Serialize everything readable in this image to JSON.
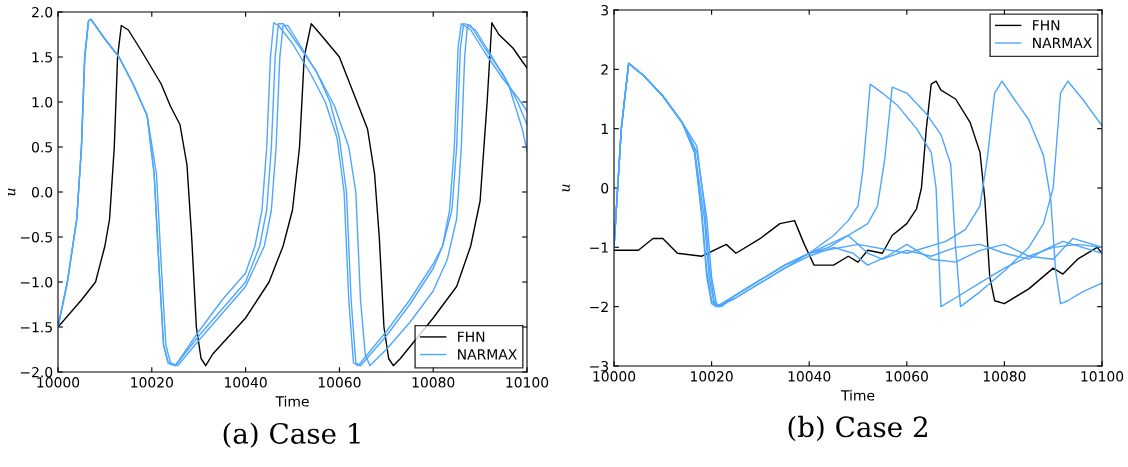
{
  "chart_data": [
    {
      "type": "line",
      "title": "(a) Case 1",
      "xlabel": "Time",
      "ylabel": "u",
      "legend": "bottom right",
      "grid": false,
      "xlim": [
        10000,
        10100
      ],
      "xticks": [
        10000,
        10020,
        10040,
        10060,
        10080,
        10100
      ],
      "ylim": [
        -2.0,
        2.0
      ],
      "yticks": [
        {
          "value": -2.0,
          "label": "−2.0"
        },
        {
          "value": -1.5,
          "label": "−1.5"
        },
        {
          "value": -1.0,
          "label": "−1.0"
        },
        {
          "value": -0.5,
          "label": "−0.5"
        },
        {
          "value": 0.0,
          "label": "0.0"
        },
        {
          "value": 0.5,
          "label": "0.5"
        },
        {
          "value": 1.0,
          "label": "1.0"
        },
        {
          "value": 1.5,
          "label": "1.5"
        },
        {
          "value": 2.0,
          "label": "2.0"
        }
      ],
      "series": [
        {
          "name": "FHN",
          "color": "#000000",
          "x": [
            10000,
            10005,
            10008,
            10010,
            10011,
            10012,
            10012.7,
            10013.5,
            10015,
            10018,
            10022,
            10024,
            10026,
            10027.5,
            10028.5,
            10029.5,
            10030.5,
            10031.5,
            10033,
            10040,
            10045,
            10048,
            10050,
            10051.5,
            10052.5,
            10054,
            10056,
            10060,
            10063,
            10066,
            10067.5,
            10068.5,
            10069.5,
            10070.5,
            10071.5,
            10073,
            10080,
            10085,
            10088,
            10090,
            10091.5,
            10092.5,
            10094,
            10097,
            10099,
            10100
          ],
          "values": [
            -1.5,
            -1.2,
            -1.0,
            -0.6,
            -0.3,
            0.5,
            1.5,
            1.85,
            1.8,
            1.55,
            1.2,
            0.95,
            0.75,
            0.3,
            -0.5,
            -1.5,
            -1.85,
            -1.93,
            -1.8,
            -1.4,
            -1.0,
            -0.6,
            -0.2,
            0.5,
            1.5,
            1.87,
            1.75,
            1.5,
            1.1,
            0.7,
            0.2,
            -0.5,
            -1.5,
            -1.85,
            -1.93,
            -1.85,
            -1.4,
            -1.05,
            -0.6,
            -0.1,
            1.0,
            1.88,
            1.75,
            1.6,
            1.45,
            1.38
          ]
        },
        {
          "name": "NARMAX",
          "color": "#4da6ff",
          "x": [
            10000,
            10002,
            10004,
            10005,
            10005.7,
            10006.5,
            10007,
            10010,
            10013,
            10016,
            10019,
            10020.5,
            10021.5,
            10022.5,
            10023.5,
            10025,
            10030,
            10035,
            10040,
            10043,
            10044.5,
            10045.5,
            10046.3,
            10047,
            10048,
            10051,
            10055,
            10058,
            10060,
            10061.5,
            10062.5,
            10063.5,
            10064.5,
            10070,
            10075,
            10080,
            10082,
            10084,
            10085,
            10085.8,
            10086.5,
            10088,
            10091,
            10095,
            10098,
            10100
          ],
          "values": [
            -1.5,
            -1.0,
            -0.3,
            0.5,
            1.5,
            1.9,
            1.92,
            1.7,
            1.5,
            1.2,
            0.85,
            0.2,
            -0.8,
            -1.7,
            -1.9,
            -1.93,
            -1.6,
            -1.3,
            -1.0,
            -0.6,
            -0.2,
            0.5,
            1.5,
            1.87,
            1.87,
            1.65,
            1.35,
            1.0,
            0.6,
            0.0,
            -1.2,
            -1.9,
            -1.93,
            -1.6,
            -1.25,
            -0.85,
            -0.6,
            -0.2,
            0.5,
            1.6,
            1.87,
            1.85,
            1.6,
            1.3,
            1.0,
            0.75
          ]
        },
        {
          "color": "#4da6ff",
          "x": [
            10000,
            10002,
            10004,
            10005,
            10005.7,
            10006.5,
            10007,
            10010,
            10013,
            10016,
            10019,
            10021,
            10022,
            10023,
            10024,
            10025.5,
            10030,
            10035,
            10040,
            10044,
            10045.5,
            10046.5,
            10047.3,
            10048,
            10049,
            10052,
            10056,
            10059,
            10062,
            10063.5,
            10064.5,
            10065.5,
            10066.5,
            10070,
            10075,
            10080,
            10083,
            10085,
            10086,
            10086.7,
            10087.3,
            10089,
            10092,
            10096,
            10099,
            10100
          ],
          "values": [
            -1.5,
            -1.0,
            -0.3,
            0.5,
            1.5,
            1.9,
            1.92,
            1.7,
            1.5,
            1.2,
            0.85,
            0.2,
            -0.8,
            -1.7,
            -1.9,
            -1.93,
            -1.65,
            -1.35,
            -1.05,
            -0.6,
            -0.2,
            0.5,
            1.5,
            1.85,
            1.85,
            1.6,
            1.25,
            0.95,
            0.5,
            0.0,
            -1.2,
            -1.8,
            -1.93,
            -1.75,
            -1.45,
            -1.1,
            -0.75,
            -0.3,
            0.5,
            1.5,
            1.85,
            1.8,
            1.55,
            1.2,
            0.7,
            0.45
          ]
        },
        {
          "color": "#4da6ff",
          "x": [
            10000,
            10002,
            10004,
            10005,
            10005.7,
            10006.5,
            10007,
            10010,
            10013,
            10016,
            10019,
            10020.5,
            10021.5,
            10022.5,
            10023.5,
            10025,
            10030,
            10035,
            10040,
            10042,
            10043.5,
            10044.5,
            10045.3,
            10046,
            10047,
            10050,
            10054,
            10057,
            10059.5,
            10061,
            10062,
            10063,
            10064,
            10070,
            10075,
            10080,
            10082,
            10083.5,
            10084.5,
            10085.3,
            10086,
            10088,
            10091,
            10095,
            10098,
            10100
          ],
          "values": [
            -1.5,
            -1.0,
            -0.3,
            0.5,
            1.5,
            1.9,
            1.92,
            1.7,
            1.5,
            1.2,
            0.85,
            0.2,
            -0.8,
            -1.7,
            -1.9,
            -1.93,
            -1.55,
            -1.2,
            -0.9,
            -0.6,
            -0.2,
            0.5,
            1.5,
            1.88,
            1.85,
            1.65,
            1.3,
            1.0,
            0.6,
            0.0,
            -1.2,
            -1.9,
            -1.93,
            -1.55,
            -1.2,
            -0.8,
            -0.6,
            -0.2,
            0.5,
            1.6,
            1.87,
            1.8,
            1.55,
            1.25,
            1.05,
            0.9
          ]
        }
      ]
    },
    {
      "type": "line",
      "title": "(b) Case 2",
      "xlabel": "Time",
      "ylabel": "u",
      "legend": "top right",
      "grid": false,
      "xlim": [
        10000,
        10100
      ],
      "xticks": [
        10000,
        10020,
        10040,
        10060,
        10080,
        10100
      ],
      "ylim": [
        -3,
        3
      ],
      "yticks": [
        {
          "value": -3,
          "label": "−3"
        },
        {
          "value": -2,
          "label": "−2"
        },
        {
          "value": -1,
          "label": "−1"
        },
        0,
        1,
        2,
        3
      ],
      "series": [
        {
          "name": "FHN",
          "color": "#000000",
          "x": [
            10000,
            10005,
            10008,
            10010,
            10013,
            10018,
            10023,
            10025,
            10030,
            10034,
            10037,
            10039,
            10041,
            10045,
            10048,
            10050,
            10052,
            10055,
            10057,
            10060,
            10062,
            10063,
            10064,
            10065,
            10066,
            10067,
            10070,
            10073,
            10075,
            10076,
            10077,
            10078,
            10080,
            10085,
            10090,
            10092,
            10095,
            10099,
            10100
          ],
          "values": [
            -1.05,
            -1.05,
            -0.85,
            -0.85,
            -1.1,
            -1.15,
            -0.95,
            -1.1,
            -0.85,
            -0.6,
            -0.55,
            -0.95,
            -1.3,
            -1.3,
            -1.15,
            -1.25,
            -1.05,
            -1.1,
            -0.8,
            -0.6,
            -0.35,
            0.0,
            1.0,
            1.75,
            1.8,
            1.65,
            1.5,
            1.1,
            0.6,
            -0.2,
            -1.5,
            -1.9,
            -1.95,
            -1.7,
            -1.35,
            -1.45,
            -1.2,
            -1.0,
            -1.1
          ]
        },
        {
          "name": "NARMAX",
          "color": "#4da6ff",
          "x": [
            10000,
            10001.5,
            10003,
            10006,
            10010,
            10014,
            10016.5,
            10018,
            10019,
            10020,
            10021,
            10025,
            10030,
            10035,
            10040,
            10045,
            10048,
            10050,
            10051,
            10052.5,
            10055,
            10058,
            10062,
            10065,
            10066,
            10067,
            10070,
            10075,
            10080,
            10085,
            10090,
            10095,
            10100
          ],
          "values": [
            -1.0,
            1.0,
            2.1,
            1.9,
            1.55,
            1.1,
            0.6,
            -0.5,
            -1.5,
            -1.95,
            -2.0,
            -1.8,
            -1.55,
            -1.3,
            -1.1,
            -0.8,
            -0.55,
            -0.3,
            0.3,
            1.75,
            1.6,
            1.4,
            1.0,
            0.6,
            0.0,
            -2.0,
            -1.85,
            -1.6,
            -1.35,
            -1.15,
            -1.0,
            -0.95,
            -1.0
          ]
        },
        {
          "color": "#4da6ff",
          "x": [
            10000,
            10001.5,
            10003,
            10006,
            10010,
            10014,
            10016.5,
            10018.5,
            10019.5,
            10020.5,
            10021.5,
            10025,
            10030,
            10035,
            10040,
            10048,
            10052,
            10054,
            10055.5,
            10057,
            10060,
            10064,
            10067,
            10069,
            10070,
            10071,
            10075,
            10080,
            10085,
            10088,
            10090,
            10091.5,
            10093,
            10096,
            10100
          ],
          "values": [
            -1.0,
            1.0,
            2.1,
            1.9,
            1.55,
            1.1,
            0.65,
            -0.5,
            -1.5,
            -1.95,
            -2.0,
            -1.85,
            -1.6,
            -1.35,
            -1.1,
            -0.8,
            -0.6,
            -0.3,
            0.5,
            1.7,
            1.6,
            1.25,
            0.9,
            0.4,
            -1.0,
            -2.0,
            -1.75,
            -1.4,
            -1.0,
            -0.6,
            0.0,
            1.6,
            1.8,
            1.5,
            1.05
          ]
        },
        {
          "color": "#4da6ff",
          "x": [
            10000,
            10001.5,
            10003,
            10006,
            10010,
            10014,
            10017,
            10019,
            10020,
            10021,
            10022,
            10025,
            10030,
            10035,
            10040,
            10050,
            10060,
            10068,
            10072,
            10075,
            10076.5,
            10078,
            10079.5,
            10082,
            10085,
            10088,
            10089.5,
            10090.5,
            10091.5,
            10093,
            10096,
            10100
          ],
          "values": [
            -1.0,
            1.0,
            2.1,
            1.9,
            1.55,
            1.1,
            0.6,
            -0.5,
            -1.5,
            -1.95,
            -2.0,
            -1.8,
            -1.55,
            -1.3,
            -1.1,
            -0.95,
            -1.1,
            -0.9,
            -0.7,
            -0.3,
            0.5,
            1.6,
            1.8,
            1.5,
            1.15,
            0.55,
            -0.2,
            -1.4,
            -1.95,
            -1.9,
            -1.75,
            -1.6
          ]
        },
        {
          "color": "#4da6ff",
          "x": [
            10000,
            10001.5,
            10003,
            10006,
            10010,
            10014,
            10017,
            10018.5,
            10019.5,
            10020.5,
            10021.5,
            10025,
            10030,
            10035,
            10040,
            10044,
            10048,
            10052,
            10055,
            10060,
            10065,
            10070,
            10075,
            10080,
            10085,
            10088,
            10092,
            10096,
            10100
          ],
          "values": [
            -1.0,
            1.0,
            2.1,
            1.9,
            1.55,
            1.1,
            0.7,
            -0.3,
            -1.3,
            -1.9,
            -2.0,
            -1.8,
            -1.55,
            -1.3,
            -1.1,
            -1.0,
            -0.8,
            -1.1,
            -1.2,
            -1.05,
            -1.15,
            -1.0,
            -0.95,
            -1.1,
            -1.2,
            -1.05,
            -0.9,
            -1.0,
            -1.1
          ]
        },
        {
          "color": "#4da6ff",
          "x": [
            10000,
            10001.5,
            10003,
            10006,
            10010,
            10014,
            10016.5,
            10018,
            10019,
            10020,
            10021,
            10025,
            10030,
            10035,
            10040,
            10045,
            10049,
            10052,
            10056,
            10060,
            10065,
            10070,
            10075,
            10080,
            10085,
            10090,
            10094,
            10100
          ],
          "values": [
            -1.0,
            1.0,
            2.1,
            1.9,
            1.55,
            1.1,
            0.6,
            -0.4,
            -1.4,
            -1.9,
            -2.0,
            -1.85,
            -1.6,
            -1.35,
            -1.15,
            -1.0,
            -1.1,
            -1.3,
            -1.15,
            -0.95,
            -1.2,
            -1.25,
            -1.05,
            -0.95,
            -1.15,
            -1.2,
            -0.85,
            -1.0
          ]
        }
      ]
    }
  ]
}
